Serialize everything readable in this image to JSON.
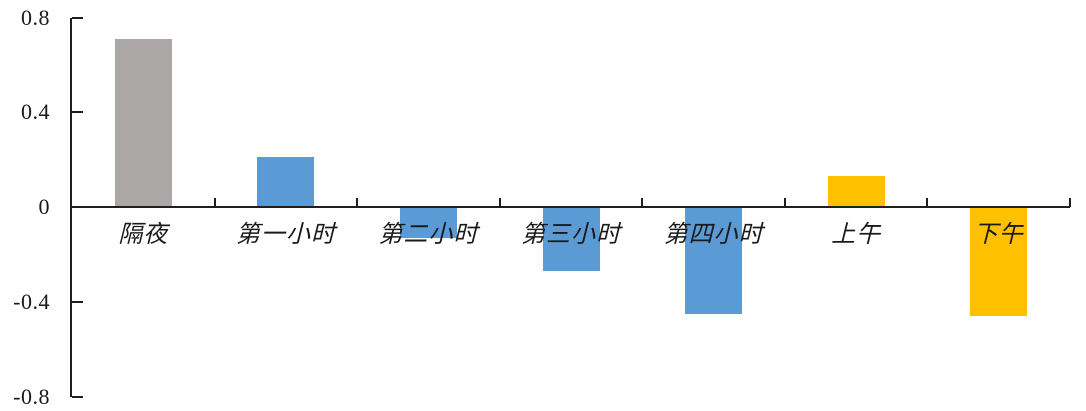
{
  "chart_data": {
    "type": "bar",
    "title": "",
    "xlabel": "",
    "ylabel": "",
    "categories": [
      "隔夜",
      "第一小时",
      "第二小时",
      "第三小时",
      "第四小时",
      "上午",
      "下午"
    ],
    "values": [
      0.71,
      0.21,
      -0.13,
      -0.27,
      -0.45,
      0.13,
      -0.46
    ],
    "bar_colors": [
      "#aba7a6",
      "#5b9bd5",
      "#5b9bd5",
      "#5b9bd5",
      "#5b9bd5",
      "#ffc000",
      "#ffc000"
    ],
    "ylim": [
      -0.8,
      0.8
    ],
    "y_ticks": [
      0.8,
      0.4,
      0,
      -0.4,
      -0.8
    ],
    "y_tick_labels": [
      "0.8",
      "0.4",
      "0",
      "-0.4",
      "-0.8"
    ],
    "grid": false,
    "legend": false,
    "axis_color": "#1f1f1f",
    "text_color": "#1a1a1a",
    "background": "#ffffff"
  }
}
